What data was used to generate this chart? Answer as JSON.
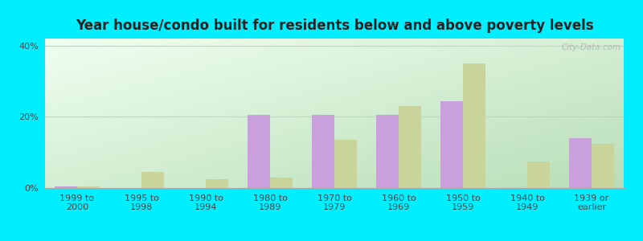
{
  "title": "Year house/condo built for residents below and above poverty levels",
  "categories": [
    "1999 to\n2000",
    "1995 to\n1998",
    "1990 to\n1994",
    "1980 to\n1989",
    "1970 to\n1979",
    "1960 to\n1969",
    "1950 to\n1959",
    "1940 to\n1949",
    "1939 or\nearlier"
  ],
  "below_poverty": [
    0.5,
    0.0,
    0.0,
    20.5,
    20.5,
    20.5,
    24.5,
    0.0,
    14.0
  ],
  "above_poverty": [
    0.5,
    4.5,
    2.5,
    3.0,
    13.5,
    23.0,
    35.0,
    7.5,
    12.5
  ],
  "below_color": "#c9a0dc",
  "above_color": "#c8d49a",
  "ylim": [
    0,
    42
  ],
  "yticks": [
    0,
    20,
    40
  ],
  "ytick_labels": [
    "0%",
    "20%",
    "40%"
  ],
  "outer_background": "#00eeff",
  "bar_width": 0.35,
  "watermark": "City-Data.com",
  "title_fontsize": 12,
  "tick_fontsize": 8
}
